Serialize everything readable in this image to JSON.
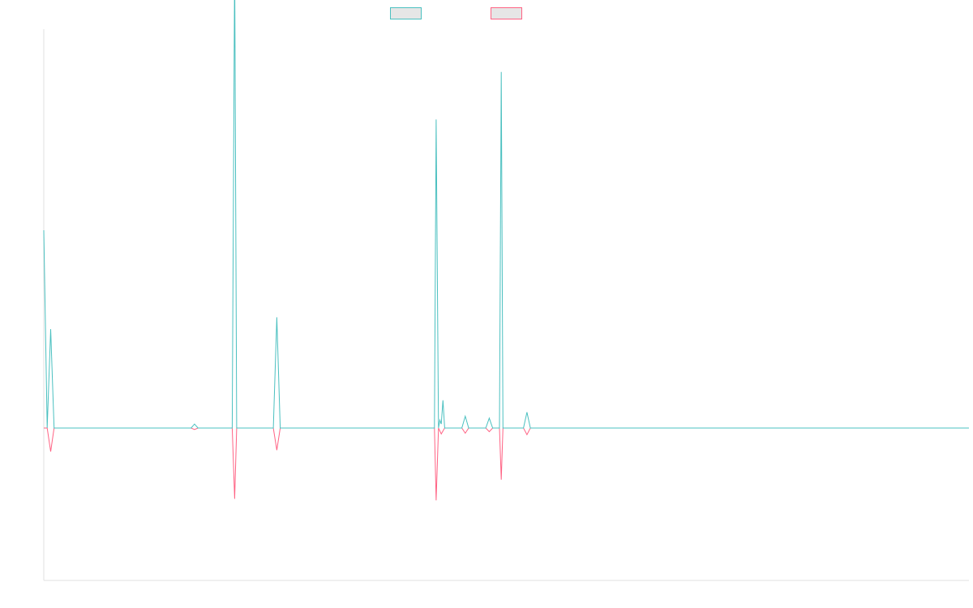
{
  "chart_data": {
    "type": "line",
    "title": "",
    "xlabel": "",
    "ylabel": "",
    "legend": "top-center",
    "grid": false,
    "x": [
      0,
      1,
      2,
      3,
      4,
      5,
      6,
      7,
      8,
      9,
      10,
      11,
      12,
      13,
      14,
      15,
      16,
      17,
      18,
      19,
      20,
      21,
      22,
      23,
      24,
      25,
      26,
      27,
      28,
      29,
      30,
      31,
      32,
      33,
      34,
      35,
      36,
      37,
      38,
      39,
      40,
      41,
      42,
      43,
      44,
      45,
      46,
      47,
      48,
      49,
      50,
      51,
      52,
      53,
      54,
      55,
      56,
      57,
      58,
      59,
      60,
      61,
      62,
      63,
      64,
      65,
      66,
      67,
      68,
      69,
      70,
      71,
      72,
      73,
      74,
      75,
      76,
      77,
      78,
      79,
      80,
      81,
      82,
      83,
      84,
      85,
      86,
      87,
      88,
      89,
      90,
      91,
      92,
      93,
      94,
      95,
      96,
      97,
      98,
      99,
      100,
      101,
      102,
      103,
      104,
      105,
      106,
      107,
      108,
      109,
      110,
      111,
      112,
      113,
      114,
      115,
      116,
      117,
      118,
      119,
      120,
      121,
      122,
      123,
      124,
      125,
      126,
      127,
      128,
      129,
      130,
      131,
      132,
      133,
      134,
      135,
      136,
      137,
      138,
      139,
      140,
      141,
      142,
      143,
      144,
      145,
      146,
      147,
      148,
      149,
      150,
      151,
      152,
      153,
      154,
      155,
      156,
      157,
      158,
      159,
      160,
      161,
      162,
      163,
      164,
      165,
      166,
      167,
      168,
      169,
      170,
      171,
      172,
      173,
      174,
      175,
      176,
      177,
      178,
      179,
      180,
      181,
      182,
      183,
      184,
      185,
      186,
      187,
      188,
      189,
      190,
      191,
      192,
      193,
      194,
      195,
      196,
      197,
      198,
      199,
      200,
      201,
      202,
      203,
      204,
      205,
      206,
      207,
      208,
      209,
      210,
      211,
      212,
      213,
      214,
      215,
      216,
      217,
      218,
      219,
      220,
      221,
      222,
      223,
      224,
      225,
      226,
      227,
      228,
      229,
      230,
      231,
      232,
      233,
      234,
      235,
      236,
      237,
      238,
      239,
      240,
      241,
      242,
      243,
      244,
      245,
      246,
      247,
      248,
      249,
      250,
      251,
      252,
      253,
      254,
      255,
      256,
      257,
      258,
      259,
      260,
      261,
      262,
      263,
      264,
      265,
      266,
      267,
      268,
      269,
      270
    ],
    "xlim": [
      0,
      270
    ],
    "ylim": [
      -100,
      100
    ],
    "series": [
      {
        "name": "",
        "color": "#4bc0c0",
        "points": [
          [
            0,
            50
          ],
          [
            1,
            0
          ],
          [
            2,
            25
          ],
          [
            3,
            0
          ],
          [
            43,
            0
          ],
          [
            44,
            1
          ],
          [
            45,
            0
          ],
          [
            55,
            0
          ],
          [
            55.7,
            118
          ],
          [
            56.3,
            0
          ],
          [
            67,
            0
          ],
          [
            68,
            28
          ],
          [
            69,
            0
          ],
          [
            114,
            0
          ],
          [
            114.5,
            78
          ],
          [
            115.2,
            0
          ],
          [
            115.6,
            2
          ],
          [
            116,
            1
          ],
          [
            116.5,
            7
          ],
          [
            117,
            0
          ],
          [
            122,
            0
          ],
          [
            123,
            3
          ],
          [
            124,
            0
          ],
          [
            129,
            0
          ],
          [
            130,
            2.5
          ],
          [
            131,
            0
          ],
          [
            133,
            0
          ],
          [
            133.5,
            90
          ],
          [
            134,
            0
          ],
          [
            140,
            0
          ],
          [
            141,
            4
          ],
          [
            142,
            0
          ],
          [
            270,
            0
          ]
        ]
      },
      {
        "name": "",
        "color": "#ff6384",
        "points": [
          [
            0,
            0
          ],
          [
            1,
            0
          ],
          [
            2,
            -16
          ],
          [
            3,
            0
          ],
          [
            43,
            0
          ],
          [
            44,
            -1
          ],
          [
            45,
            0
          ],
          [
            55,
            0
          ],
          [
            55.7,
            -48
          ],
          [
            56.3,
            0
          ],
          [
            67,
            0
          ],
          [
            68,
            -15
          ],
          [
            69,
            0
          ],
          [
            114,
            0
          ],
          [
            114.5,
            -49
          ],
          [
            115.2,
            0
          ],
          [
            116,
            -4
          ],
          [
            117,
            0
          ],
          [
            122,
            0
          ],
          [
            123,
            -3.5
          ],
          [
            124,
            0
          ],
          [
            129,
            0
          ],
          [
            130,
            -2.5
          ],
          [
            131,
            0
          ],
          [
            133,
            0
          ],
          [
            133.5,
            -35
          ],
          [
            134,
            0
          ],
          [
            140,
            0
          ],
          [
            141,
            -4.5
          ],
          [
            142,
            0
          ],
          [
            270,
            0
          ]
        ]
      }
    ]
  }
}
